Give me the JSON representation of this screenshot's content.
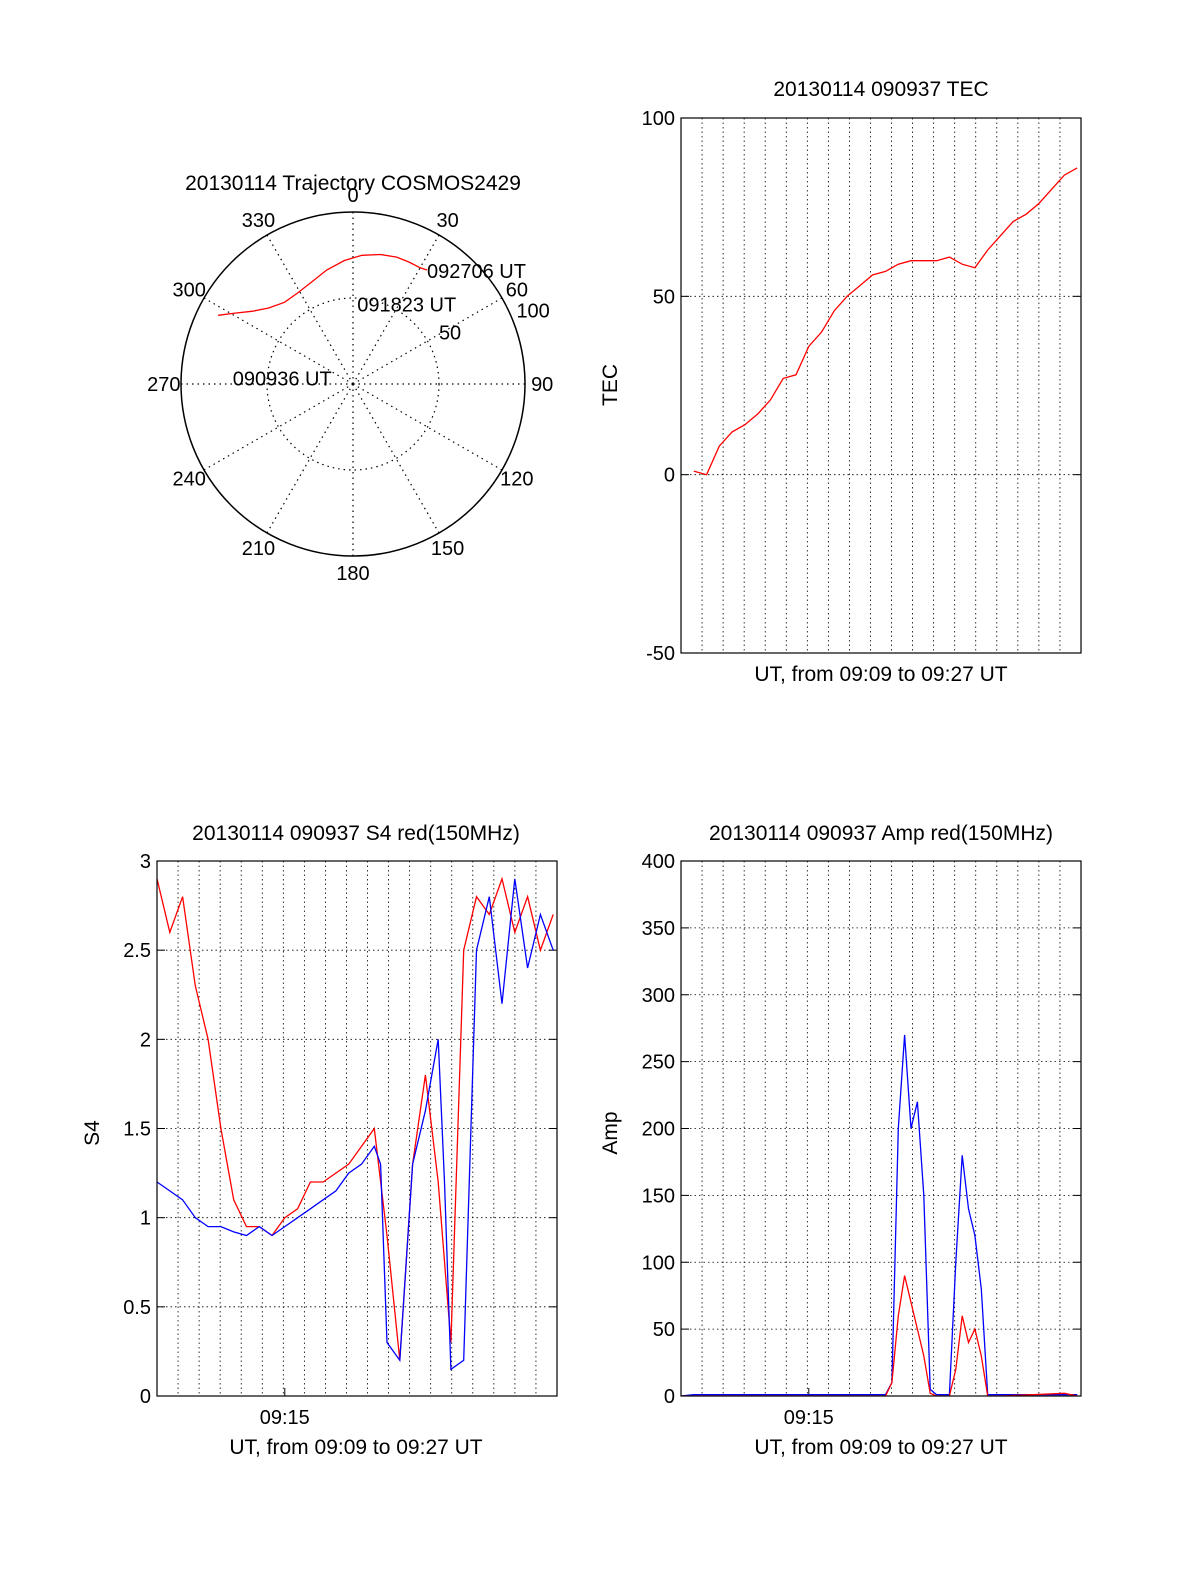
{
  "chart_data": [
    {
      "type": "polar",
      "title": "20130114 Trajectory COSMOS2429",
      "azimuth_ticks": [
        "0",
        "30",
        "60",
        "90",
        "120",
        "150",
        "180",
        "210",
        "240",
        "270",
        "300",
        "330"
      ],
      "azimuth_values": [
        0,
        30,
        60,
        90,
        120,
        150,
        180,
        210,
        240,
        270,
        300,
        330
      ],
      "radial_ticks": [
        "50",
        "100"
      ],
      "radial_values": [
        50,
        100
      ],
      "radial_max": 100,
      "trajectory_color": "#ff0000",
      "trajectory": [
        {
          "az": 297,
          "r": 88
        },
        {
          "az": 301,
          "r": 80
        },
        {
          "az": 306,
          "r": 72
        },
        {
          "az": 312,
          "r": 66
        },
        {
          "az": 320,
          "r": 62
        },
        {
          "az": 329,
          "r": 62
        },
        {
          "az": 338,
          "r": 64
        },
        {
          "az": 347,
          "r": 68
        },
        {
          "az": 356,
          "r": 72
        },
        {
          "az": 4,
          "r": 75
        },
        {
          "az": 12,
          "r": 77
        },
        {
          "az": 19,
          "r": 78
        },
        {
          "az": 25,
          "r": 78
        },
        {
          "az": 30,
          "r": 78
        },
        {
          "az": 33,
          "r": 79
        }
      ],
      "annotations": [
        {
          "text": "092706 UT",
          "az": 33,
          "r": 79
        },
        {
          "text": "091823 UT",
          "az": 3,
          "r": 47
        },
        {
          "text": "090936 UT",
          "az": 273,
          "r": 70
        }
      ]
    },
    {
      "type": "line",
      "title": "20130114 090937 TEC",
      "xlabel": "UT, from 09:09 to 09:27 UT",
      "ylabel": "TEC",
      "xlim": [
        9.15,
        9.463
      ],
      "ylim": [
        -50,
        100
      ],
      "yticks": [
        -50,
        0,
        50,
        100
      ],
      "ytick_labels": [
        "-50",
        "0",
        "50",
        "100"
      ],
      "grid": true,
      "series": [
        {
          "color": "#ff0000",
          "x": [
            9.16,
            9.17,
            9.18,
            9.19,
            9.2,
            9.21,
            9.22,
            9.23,
            9.24,
            9.25,
            9.26,
            9.27,
            9.28,
            9.29,
            9.3,
            9.31,
            9.32,
            9.33,
            9.34,
            9.35,
            9.36,
            9.37,
            9.38,
            9.39,
            9.4,
            9.41,
            9.42,
            9.43,
            9.44,
            9.45,
            9.46
          ],
          "y": [
            1,
            0,
            8,
            12,
            14,
            17,
            21,
            27,
            28,
            36,
            40,
            46,
            50,
            53,
            56,
            57,
            59,
            60,
            60,
            60,
            61,
            59,
            58,
            63,
            67,
            71,
            73,
            76,
            80,
            84,
            86
          ]
        }
      ]
    },
    {
      "type": "line",
      "title": "20130114 090937 S4 red(150MHz)",
      "xlabel": "UT, from 09:09 to 09:27 UT",
      "ylabel": "S4",
      "xlim": [
        9.15,
        9.463
      ],
      "ylim": [
        0,
        3
      ],
      "yticks": [
        0,
        0.5,
        1,
        1.5,
        2,
        2.5,
        3
      ],
      "ytick_labels": [
        "0",
        "0.5",
        "1",
        "1.5",
        "2",
        "2.5",
        "3"
      ],
      "xticks": [
        9.25
      ],
      "xtick_labels": [
        "09:15"
      ],
      "grid": true,
      "series": [
        {
          "color": "#ff0000",
          "x": [
            9.15,
            9.16,
            9.17,
            9.18,
            9.19,
            9.2,
            9.21,
            9.22,
            9.23,
            9.24,
            9.25,
            9.26,
            9.27,
            9.28,
            9.3,
            9.32,
            9.33,
            9.34,
            9.35,
            9.36,
            9.37,
            9.38,
            9.39,
            9.4,
            9.41,
            9.42,
            9.43,
            9.44,
            9.45,
            9.46
          ],
          "y": [
            2.9,
            2.6,
            2.8,
            2.3,
            2.0,
            1.5,
            1.1,
            0.95,
            0.95,
            0.9,
            1.0,
            1.05,
            1.2,
            1.2,
            1.3,
            1.5,
            0.9,
            0.2,
            1.3,
            1.8,
            1.2,
            0.3,
            2.5,
            2.8,
            2.7,
            2.9,
            2.6,
            2.8,
            2.5,
            2.7
          ]
        },
        {
          "color": "#0000ff",
          "x": [
            9.15,
            9.16,
            9.17,
            9.18,
            9.19,
            9.2,
            9.21,
            9.22,
            9.23,
            9.24,
            9.25,
            9.26,
            9.27,
            9.28,
            9.29,
            9.3,
            9.31,
            9.32,
            9.325,
            9.33,
            9.34,
            9.35,
            9.36,
            9.37,
            9.375,
            9.38,
            9.39,
            9.4,
            9.41,
            9.42,
            9.43,
            9.44,
            9.45,
            9.46
          ],
          "y": [
            1.2,
            1.15,
            1.1,
            1.0,
            0.95,
            0.95,
            0.92,
            0.9,
            0.95,
            0.9,
            0.95,
            1.0,
            1.05,
            1.1,
            1.15,
            1.25,
            1.3,
            1.4,
            1.3,
            0.3,
            0.2,
            1.3,
            1.6,
            2.0,
            1.2,
            0.15,
            0.2,
            2.5,
            2.8,
            2.2,
            2.9,
            2.4,
            2.7,
            2.5
          ]
        }
      ]
    },
    {
      "type": "line",
      "title": "20130114 090937 Amp red(150MHz)",
      "xlabel": "UT, from 09:09 to 09:27 UT",
      "ylabel": "Amp",
      "xlim": [
        9.15,
        9.463
      ],
      "ylim": [
        0,
        400
      ],
      "yticks": [
        0,
        50,
        100,
        150,
        200,
        250,
        300,
        350,
        400
      ],
      "ytick_labels": [
        "0",
        "50",
        "100",
        "150",
        "200",
        "250",
        "300",
        "350",
        "400"
      ],
      "xticks": [
        9.25
      ],
      "xtick_labels": [
        "09:15"
      ],
      "grid": true,
      "series": [
        {
          "color": "#0000ff",
          "x": [
            9.15,
            9.16,
            9.2,
            9.25,
            9.3,
            9.31,
            9.315,
            9.32,
            9.325,
            9.33,
            9.335,
            9.34,
            9.345,
            9.35,
            9.36,
            9.365,
            9.37,
            9.375,
            9.38,
            9.385,
            9.39,
            9.4,
            9.45,
            9.46
          ],
          "y": [
            0,
            1,
            1,
            1,
            1,
            1,
            10,
            200,
            270,
            200,
            220,
            150,
            5,
            1,
            1,
            100,
            180,
            140,
            120,
            80,
            1,
            1,
            1,
            1
          ]
        },
        {
          "color": "#ff0000",
          "x": [
            9.15,
            9.3,
            9.31,
            9.315,
            9.32,
            9.325,
            9.33,
            9.335,
            9.34,
            9.345,
            9.35,
            9.36,
            9.365,
            9.37,
            9.375,
            9.38,
            9.385,
            9.39,
            9.4,
            9.45,
            9.46
          ],
          "y": [
            0,
            0,
            0,
            10,
            60,
            90,
            70,
            50,
            30,
            2,
            0,
            0,
            20,
            60,
            40,
            50,
            30,
            0,
            0,
            2,
            0
          ]
        }
      ]
    }
  ]
}
